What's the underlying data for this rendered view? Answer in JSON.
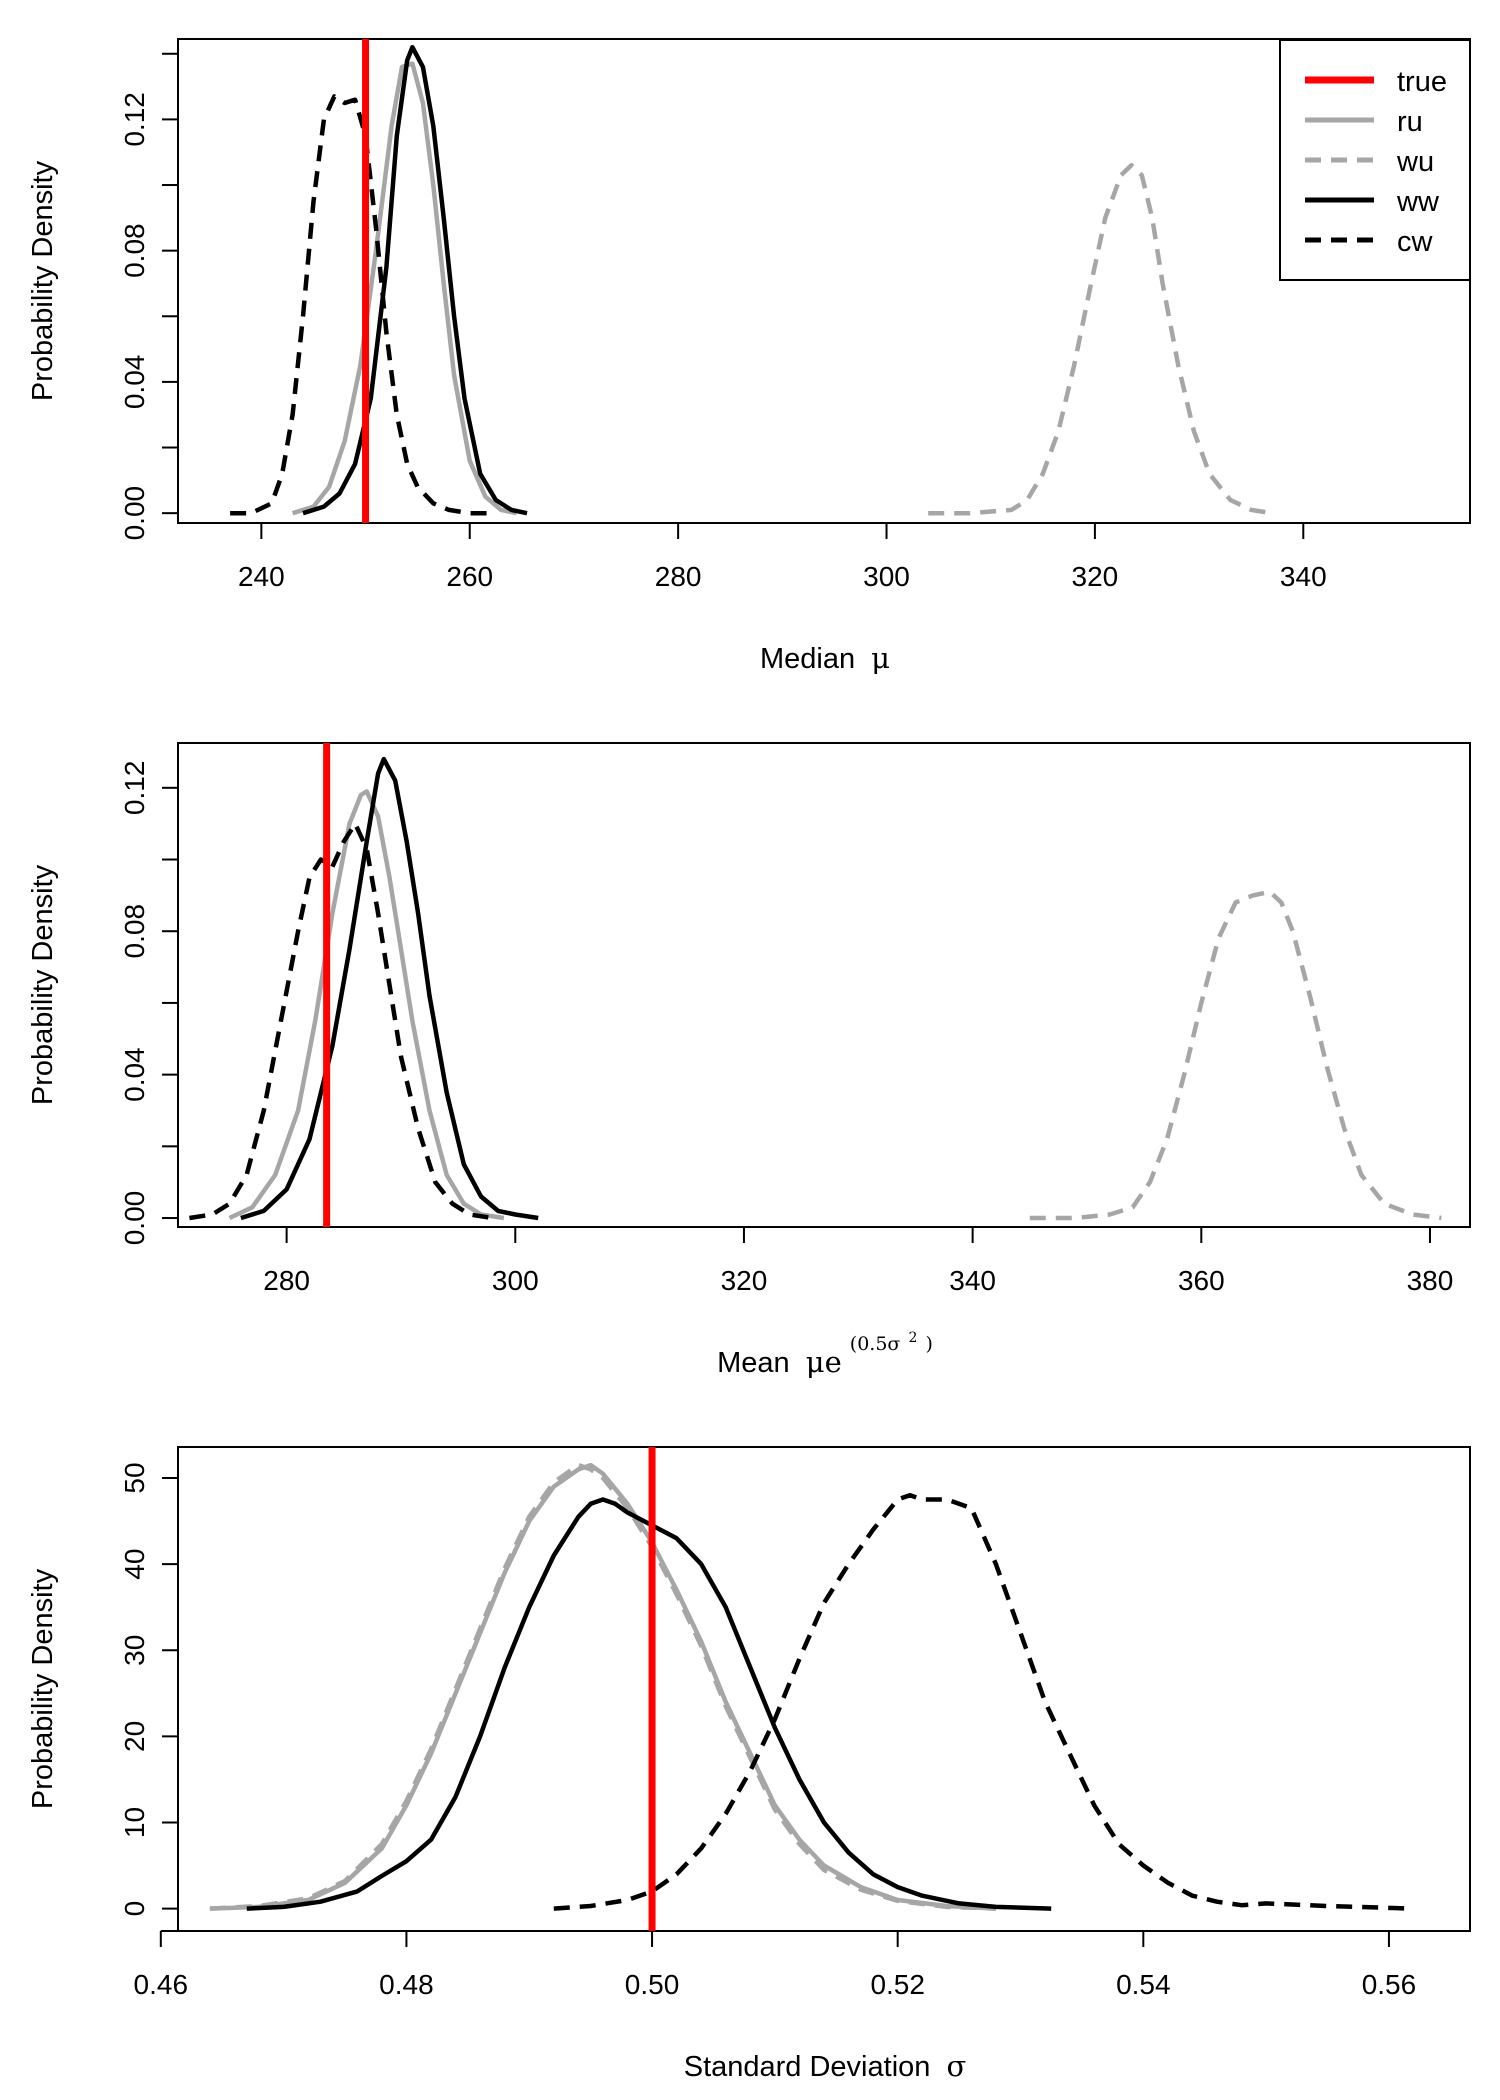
{
  "chart_data": [
    {
      "type": "line",
      "title": "",
      "xlabel": "Median",
      "xlabel_symbol": "μ",
      "ylabel": "Probability Density",
      "xlim": [
        232,
        356
      ],
      "ylim": [
        -0.003,
        0.1445
      ],
      "xticks": [
        240,
        260,
        280,
        300,
        320,
        340
      ],
      "xtick_labels": [
        "240",
        "260",
        "280",
        "300",
        "320",
        "340"
      ],
      "yticks": [
        0.0,
        0.02,
        0.04,
        0.06,
        0.08,
        0.1,
        0.12,
        0.14
      ],
      "ytick_labels": [
        "0.00",
        "",
        "0.04",
        "",
        "0.08",
        "",
        "0.12",
        ""
      ],
      "true_value": 250,
      "legend": {
        "position": "top-right",
        "entries": [
          {
            "key": "true",
            "label": "true"
          },
          {
            "key": "ru",
            "label": "ru"
          },
          {
            "key": "wu",
            "label": "wu"
          },
          {
            "key": "ww",
            "label": "ww"
          },
          {
            "key": "cw",
            "label": "cw"
          }
        ]
      },
      "series": [
        {
          "key": "ru",
          "x": [
            243,
            245,
            246.5,
            248,
            249.5,
            251,
            252.5,
            253.5,
            254.5,
            255.5,
            256.5,
            257.5,
            258.5,
            260,
            261.5,
            263,
            264.5
          ],
          "y": [
            0.0,
            0.002,
            0.008,
            0.022,
            0.045,
            0.08,
            0.118,
            0.136,
            0.137,
            0.125,
            0.1,
            0.07,
            0.042,
            0.016,
            0.005,
            0.001,
            0.0
          ]
        },
        {
          "key": "wu",
          "x": [
            304,
            308,
            312,
            313.5,
            315,
            316.5,
            318,
            319.5,
            321,
            322.5,
            323.5,
            324.5,
            325.5,
            326.5,
            328,
            329.5,
            331,
            333,
            335,
            337
          ],
          "y": [
            0.0,
            0.0,
            0.001,
            0.004,
            0.012,
            0.025,
            0.045,
            0.068,
            0.09,
            0.103,
            0.106,
            0.103,
            0.09,
            0.07,
            0.045,
            0.025,
            0.012,
            0.004,
            0.001,
            0.0
          ]
        },
        {
          "key": "ww",
          "x": [
            244,
            246,
            247.5,
            249,
            250.5,
            252,
            253,
            254,
            254.5,
            255.5,
            256.5,
            257.5,
            258.5,
            259.5,
            261,
            262.5,
            264,
            265.5
          ],
          "y": [
            0.0,
            0.002,
            0.006,
            0.015,
            0.035,
            0.075,
            0.115,
            0.138,
            0.142,
            0.136,
            0.118,
            0.09,
            0.06,
            0.035,
            0.012,
            0.004,
            0.001,
            0.0
          ]
        },
        {
          "key": "cw",
          "x": [
            237,
            239,
            241,
            242,
            243,
            244,
            245,
            246,
            247,
            248,
            249,
            250,
            251,
            252,
            253,
            254,
            255,
            256.5,
            258,
            260,
            262
          ],
          "y": [
            0.0,
            0.0,
            0.003,
            0.012,
            0.03,
            0.06,
            0.095,
            0.12,
            0.127,
            0.125,
            0.126,
            0.115,
            0.087,
            0.055,
            0.03,
            0.015,
            0.008,
            0.003,
            0.001,
            0.0,
            0.0
          ]
        }
      ]
    },
    {
      "type": "line",
      "title": "",
      "xlabel": "Mean",
      "xlabel_symbol": "μe",
      "xlabel_exponent": "(0.5σ",
      "xlabel_exponent_sq": "2",
      "xlabel_exponent_close": ")",
      "ylabel": "Probability Density",
      "xlim": [
        270.5,
        383.5
      ],
      "ylim": [
        -0.0025,
        0.1325
      ],
      "xticks": [
        280,
        300,
        320,
        340,
        360,
        380
      ],
      "xtick_labels": [
        "280",
        "300",
        "320",
        "340",
        "360",
        "380"
      ],
      "yticks": [
        0.0,
        0.02,
        0.04,
        0.06,
        0.08,
        0.1,
        0.12
      ],
      "ytick_labels": [
        "0.00",
        "",
        "0.04",
        "",
        "0.08",
        "",
        "0.12"
      ],
      "true_value": 283.5,
      "series": [
        {
          "key": "ru",
          "x": [
            275,
            277,
            279,
            281,
            282.5,
            284,
            285.5,
            286.5,
            287,
            288,
            289,
            290,
            291,
            292.5,
            294,
            295.5,
            297,
            299
          ],
          "y": [
            0.0,
            0.003,
            0.012,
            0.03,
            0.055,
            0.085,
            0.11,
            0.118,
            0.119,
            0.112,
            0.095,
            0.075,
            0.055,
            0.03,
            0.012,
            0.004,
            0.001,
            0.0
          ]
        },
        {
          "key": "wu",
          "x": [
            345,
            349,
            352,
            354,
            355.5,
            357,
            358.5,
            360,
            361.5,
            363,
            364.5,
            366,
            367,
            368,
            369.5,
            371,
            372.5,
            374,
            376,
            378.5,
            381
          ],
          "y": [
            0.0,
            0.0,
            0.001,
            0.003,
            0.01,
            0.022,
            0.04,
            0.06,
            0.078,
            0.088,
            0.09,
            0.091,
            0.088,
            0.08,
            0.062,
            0.042,
            0.025,
            0.012,
            0.004,
            0.001,
            0.0
          ]
        },
        {
          "key": "ww",
          "x": [
            276,
            278,
            280,
            282,
            284,
            285.5,
            287,
            288,
            288.5,
            289.5,
            290.5,
            291.5,
            292.5,
            294,
            295.5,
            297,
            298.5,
            300,
            302
          ],
          "y": [
            0.0,
            0.002,
            0.008,
            0.022,
            0.048,
            0.075,
            0.105,
            0.124,
            0.128,
            0.122,
            0.105,
            0.085,
            0.062,
            0.035,
            0.015,
            0.006,
            0.002,
            0.001,
            0.0
          ]
        },
        {
          "key": "cw",
          "x": [
            271.5,
            273.5,
            275,
            276.5,
            278,
            279.5,
            281,
            282,
            283,
            284,
            285,
            286,
            287,
            288,
            289,
            290,
            291.5,
            293,
            294.5,
            296,
            298
          ],
          "y": [
            0.0,
            0.001,
            0.004,
            0.012,
            0.03,
            0.055,
            0.08,
            0.095,
            0.1,
            0.098,
            0.105,
            0.11,
            0.103,
            0.085,
            0.065,
            0.045,
            0.025,
            0.01,
            0.004,
            0.001,
            0.0
          ]
        }
      ]
    },
    {
      "type": "line",
      "title": "",
      "xlabel": "Standard Deviation",
      "xlabel_symbol": "σ",
      "ylabel": "Probability Density",
      "xlim": [
        0.4614,
        0.5666
      ],
      "ylim": [
        -2.6,
        53.6
      ],
      "xticks": [
        0.46,
        0.48,
        0.5,
        0.52,
        0.54,
        0.56
      ],
      "xtick_labels": [
        "0.46",
        "0.48",
        "0.50",
        "0.52",
        "0.54",
        "0.56"
      ],
      "yticks": [
        0,
        10,
        20,
        30,
        40,
        50
      ],
      "ytick_labels": [
        "0",
        "10",
        "20",
        "30",
        "40",
        "50"
      ],
      "true_value": 0.5,
      "series": [
        {
          "key": "ru",
          "x": [
            0.464,
            0.468,
            0.472,
            0.475,
            0.478,
            0.48,
            0.482,
            0.484,
            0.486,
            0.488,
            0.49,
            0.492,
            0.494,
            0.495,
            0.496,
            0.498,
            0.5,
            0.502,
            0.504,
            0.506,
            0.508,
            0.51,
            0.512,
            0.514,
            0.517,
            0.52,
            0.524,
            0.528
          ],
          "y": [
            0.0,
            0.2,
            1.0,
            3.0,
            7.0,
            12.0,
            18.0,
            25.0,
            32.0,
            39.0,
            45.0,
            49.0,
            51.0,
            51.5,
            50.5,
            47.0,
            42.5,
            37.0,
            31.0,
            24.0,
            18.0,
            12.0,
            8.0,
            5.0,
            2.5,
            1.0,
            0.3,
            0.0
          ]
        },
        {
          "key": "wu",
          "x": [
            0.464,
            0.468,
            0.472,
            0.475,
            0.478,
            0.48,
            0.482,
            0.484,
            0.486,
            0.488,
            0.49,
            0.492,
            0.494,
            0.495,
            0.496,
            0.498,
            0.5,
            0.502,
            0.504,
            0.506,
            0.508,
            0.51,
            0.512,
            0.514,
            0.517,
            0.52,
            0.524,
            0.528
          ],
          "y": [
            0.0,
            0.3,
            1.2,
            3.2,
            7.5,
            12.5,
            18.5,
            25.5,
            32.5,
            39.5,
            45.5,
            49.5,
            51.5,
            51.0,
            50.0,
            46.5,
            42.0,
            36.5,
            30.5,
            23.5,
            17.5,
            11.5,
            7.5,
            4.5,
            2.2,
            0.9,
            0.2,
            0.0
          ]
        },
        {
          "key": "ww",
          "x": [
            0.467,
            0.47,
            0.473,
            0.476,
            0.478,
            0.48,
            0.482,
            0.484,
            0.486,
            0.488,
            0.49,
            0.492,
            0.494,
            0.495,
            0.496,
            0.497,
            0.498,
            0.5,
            0.502,
            0.504,
            0.506,
            0.508,
            0.51,
            0.512,
            0.514,
            0.516,
            0.518,
            0.52,
            0.522,
            0.525,
            0.528,
            0.5325
          ],
          "y": [
            0.0,
            0.2,
            0.8,
            2.0,
            3.8,
            5.5,
            8.0,
            13.0,
            20.0,
            28.0,
            35.0,
            41.0,
            45.5,
            47.0,
            47.5,
            47.0,
            46.0,
            44.5,
            43.0,
            40.0,
            35.0,
            28.0,
            21.0,
            15.0,
            10.0,
            6.5,
            4.0,
            2.5,
            1.5,
            0.6,
            0.2,
            0.0
          ]
        },
        {
          "key": "cw",
          "x": [
            0.492,
            0.495,
            0.498,
            0.5,
            0.502,
            0.504,
            0.506,
            0.508,
            0.51,
            0.512,
            0.514,
            0.516,
            0.518,
            0.52,
            0.521,
            0.522,
            0.524,
            0.526,
            0.528,
            0.53,
            0.532,
            0.534,
            0.536,
            0.538,
            0.54,
            0.542,
            0.544,
            0.546,
            0.548,
            0.55,
            0.555,
            0.562
          ],
          "y": [
            0.0,
            0.3,
            1.0,
            2.0,
            4.0,
            7.0,
            11.0,
            16.0,
            22.0,
            29.0,
            35.5,
            40.0,
            44.0,
            47.5,
            48.0,
            47.5,
            47.5,
            46.5,
            40.0,
            32.0,
            24.0,
            18.0,
            12.0,
            7.5,
            5.0,
            3.0,
            1.5,
            0.8,
            0.4,
            0.6,
            0.3,
            0.0
          ]
        }
      ]
    }
  ],
  "styles": {
    "true": {
      "color": "#ff0000",
      "dash": "solid"
    },
    "ru": {
      "color": "#a6a6a6",
      "dash": "solid"
    },
    "wu": {
      "color": "#a6a6a6",
      "dash": "dashed"
    },
    "ww": {
      "color": "#000000",
      "dash": "solid"
    },
    "cw": {
      "color": "#000000",
      "dash": "dashed"
    }
  }
}
